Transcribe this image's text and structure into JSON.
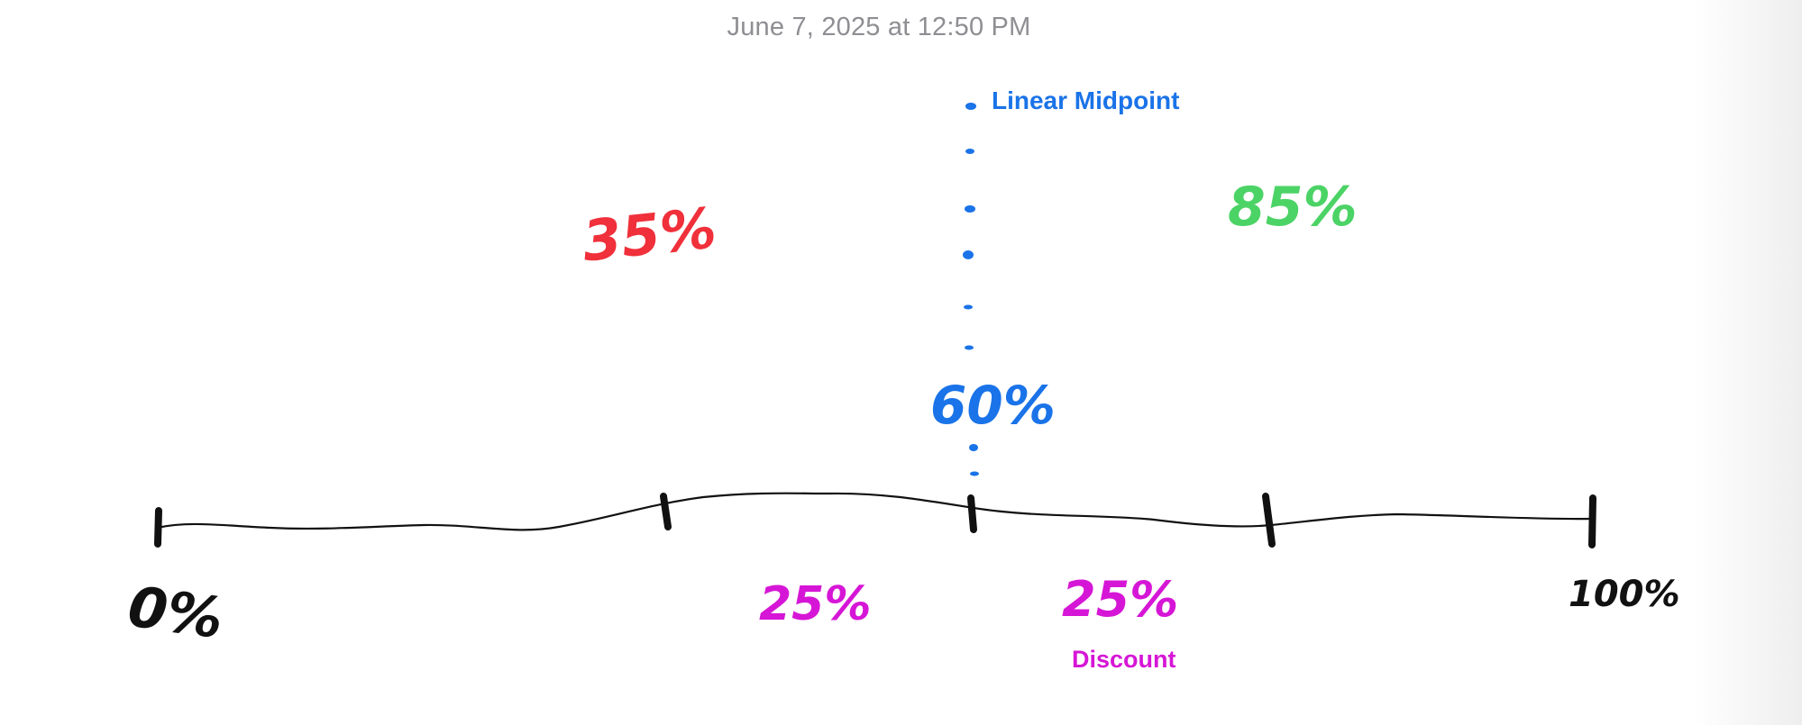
{
  "header": {
    "timestamp": "June 7, 2025 at 12:50 PM"
  },
  "colors": {
    "axis": "#111111",
    "blue": "#1a73e8",
    "red": "#f0303a",
    "green": "#4cd366",
    "magenta": "#d616d6",
    "timestamp": "#8e8e93"
  },
  "axis": {
    "ticks": [
      {
        "value": 0,
        "label": "0%"
      },
      {
        "value": 25,
        "label": ""
      },
      {
        "value": 50,
        "label": ""
      },
      {
        "value": 75,
        "label": ""
      },
      {
        "value": 100,
        "label": "100%"
      }
    ]
  },
  "annotations": {
    "midpoint_label": "Linear Midpoint",
    "midpoint_value": "60%",
    "red_value": "35%",
    "green_value": "85%",
    "left_segment_value": "25%",
    "right_segment_value": "25%",
    "discount_label": "Discount"
  }
}
